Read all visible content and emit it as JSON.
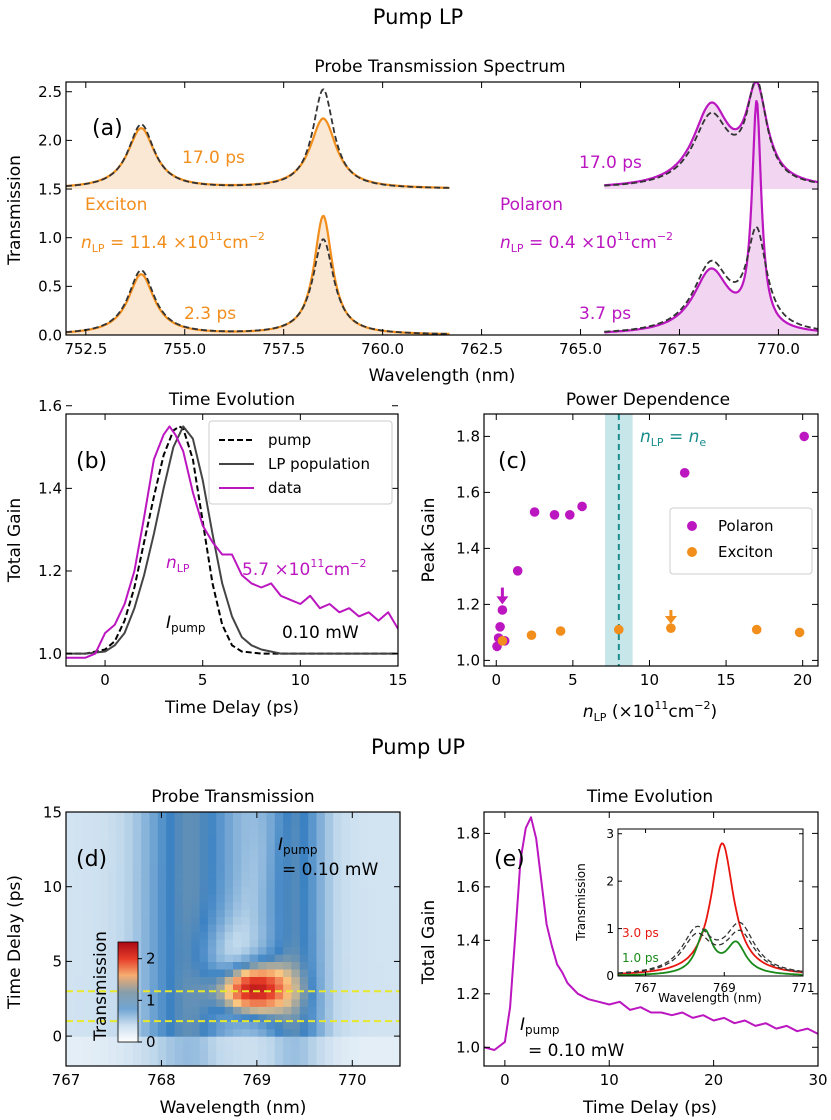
{
  "figure": {
    "section_a_title": "Pump LP",
    "section_b_title": "Pump UP"
  },
  "colors": {
    "orange": "#f28e1c",
    "orange_fill": "#fbe5cf",
    "magenta": "#bb16c0",
    "magenta_fill": "#f0d0f0",
    "dashed": "#333333",
    "teal": "#1a8c8c",
    "teal_band": "#a9d8de",
    "yellow": "#e8e82a",
    "red": "#e8160f",
    "green": "#1a8a1a"
  },
  "chart_data": [
    {
      "id": "a",
      "panel_label": "(a)",
      "type": "line",
      "title": "Probe Transmission Spectrum",
      "xlabel": "Wavelength (nm)",
      "ylabel": "Transmission",
      "xlim": [
        752.0,
        771.0
      ],
      "ylim": [
        0.0,
        2.6
      ],
      "xticks": [
        "752.5",
        "755.0",
        "757.5",
        "760.0",
        "762.5",
        "765.0",
        "767.5",
        "770.0"
      ],
      "xtick_values": [
        752.5,
        755.0,
        757.5,
        760.0,
        762.5,
        765.0,
        767.5,
        770.0
      ],
      "yticks": [
        "0.0",
        "0.5",
        "1.0",
        "1.5",
        "2.0",
        "2.5"
      ],
      "ytick_values": [
        0.0,
        0.5,
        1.0,
        1.5,
        2.0,
        2.5
      ],
      "annotations": {
        "exc_top_time": "17.0 ps",
        "exc_bottom_time": "2.3 ps",
        "exc_name": "Exciton",
        "exc_density_prefix": "n",
        "exc_density_sub": "LP",
        "exc_density_value": " = 11.4 ×10",
        "exc_density_exp": "11",
        "exc_density_unit": "cm",
        "exc_density_unit_exp": "−2",
        "pol_top_time": "17.0 ps",
        "pol_bottom_time": "3.7 ps",
        "pol_name": "Polaron",
        "pol_density_prefix": "n",
        "pol_density_sub": "LP",
        "pol_density_value": " = 0.4 ×10",
        "pol_density_exp": "11",
        "pol_density_unit": "cm",
        "pol_density_unit_exp": "−2"
      },
      "series": [
        {
          "name": "exciton 17.0 ps (data)",
          "x_range": [
            752.0,
            761.7
          ],
          "offset": 1.5,
          "peaks": [
            [
              753.9,
              0.62,
              0.42
            ],
            [
              758.5,
              0.72,
              0.4
            ]
          ]
        },
        {
          "name": "exciton 17.0 ps (reference)",
          "x_range": [
            752.0,
            761.7
          ],
          "offset": 1.5,
          "peaks": [
            [
              753.9,
              0.66,
              0.4
            ],
            [
              758.5,
              1.02,
              0.32
            ]
          ]
        },
        {
          "name": "exciton 2.3 ps (data)",
          "x_range": [
            752.0,
            761.7
          ],
          "offset": 0.0,
          "peaks": [
            [
              753.9,
              0.62,
              0.4
            ],
            [
              758.5,
              1.22,
              0.28
            ]
          ]
        },
        {
          "name": "exciton 2.3 ps (reference)",
          "x_range": [
            752.0,
            761.7
          ],
          "offset": 0.0,
          "peaks": [
            [
              753.9,
              0.66,
              0.4
            ],
            [
              758.5,
              0.98,
              0.32
            ]
          ]
        },
        {
          "name": "polaron 17.0 ps (data)",
          "x_range": [
            765.6,
            771.0
          ],
          "offset": 1.5,
          "peaks": [
            [
              768.3,
              0.82,
              0.55
            ],
            [
              769.45,
              0.95,
              0.32
            ]
          ]
        },
        {
          "name": "polaron 17.0 ps (reference)",
          "x_range": [
            765.6,
            771.0
          ],
          "offset": 1.5,
          "peaks": [
            [
              768.3,
              0.72,
              0.55
            ],
            [
              769.45,
              1.0,
              0.3
            ]
          ]
        },
        {
          "name": "polaron 3.7 ps (data)",
          "x_range": [
            765.6,
            771.0
          ],
          "offset": 0.0,
          "peaks": [
            [
              768.3,
              0.65,
              0.55
            ],
            [
              769.45,
              2.3,
              0.14
            ]
          ]
        },
        {
          "name": "polaron 3.7 ps (reference)",
          "x_range": [
            765.6,
            771.0
          ],
          "offset": 0.0,
          "peaks": [
            [
              768.3,
              0.7,
              0.55
            ],
            [
              769.45,
              0.98,
              0.3
            ]
          ]
        }
      ]
    },
    {
      "id": "b",
      "panel_label": "(b)",
      "type": "line",
      "title": "Time Evolution",
      "xlabel": "Time Delay (ps)",
      "ylabel": "Total Gain",
      "xlim": [
        -2,
        15
      ],
      "ylim": [
        0.97,
        1.58
      ],
      "xticks": [
        "0",
        "5",
        "10",
        "15"
      ],
      "xtick_values": [
        0,
        5,
        10,
        15
      ],
      "yticks": [
        "1.0",
        "1.2",
        "1.4",
        "1.6"
      ],
      "ytick_values": [
        1.0,
        1.2,
        1.4,
        1.6
      ],
      "legend": [
        "pump",
        "LP population",
        "data"
      ],
      "annotations": {
        "density_prefix": "n",
        "density_sub": "LP",
        "density_value": "5.7 ×10",
        "density_exp": "11",
        "density_unit": "cm",
        "density_unit_exp": "−2",
        "pump_prefix": "I",
        "pump_sub": "pump",
        "power": "0.10 mW"
      },
      "series": [
        {
          "name": "pump",
          "x": [
            -2,
            -1,
            0,
            0.5,
            1,
            1.5,
            2,
            2.5,
            3,
            3.5,
            3.8,
            4,
            4.5,
            5,
            5.5,
            6,
            6.5,
            7,
            8,
            10,
            15
          ],
          "y": [
            1.0,
            1.0,
            1.01,
            1.03,
            1.08,
            1.16,
            1.27,
            1.38,
            1.48,
            1.54,
            1.55,
            1.545,
            1.47,
            1.32,
            1.17,
            1.07,
            1.02,
            1.005,
            1.0,
            1.0,
            1.0
          ]
        },
        {
          "name": "LP population",
          "x": [
            -2,
            -1,
            0,
            0.5,
            1,
            1.5,
            2,
            2.5,
            3,
            3.5,
            4,
            4.5,
            5,
            5.5,
            6,
            6.5,
            7,
            7.5,
            8,
            9,
            10,
            15
          ],
          "y": [
            1.0,
            1.0,
            1.005,
            1.02,
            1.05,
            1.11,
            1.19,
            1.29,
            1.4,
            1.5,
            1.55,
            1.52,
            1.42,
            1.29,
            1.17,
            1.09,
            1.04,
            1.02,
            1.01,
            1.0,
            1.0,
            1.0
          ]
        },
        {
          "name": "data",
          "x": [
            -2,
            -1,
            -0.5,
            0,
            0.5,
            1,
            1.5,
            2,
            2.5,
            3,
            3.3,
            3.6,
            4,
            4.5,
            5,
            5.5,
            6,
            6.5,
            7,
            7.5,
            8,
            8.5,
            9,
            9.5,
            10,
            10.5,
            11,
            11.5,
            12,
            12.5,
            13,
            13.5,
            14,
            14.5,
            15
          ],
          "y": [
            0.99,
            0.99,
            1.0,
            1.05,
            1.07,
            1.12,
            1.2,
            1.33,
            1.47,
            1.53,
            1.55,
            1.53,
            1.49,
            1.39,
            1.31,
            1.27,
            1.24,
            1.24,
            1.19,
            1.17,
            1.16,
            1.17,
            1.14,
            1.13,
            1.12,
            1.14,
            1.11,
            1.12,
            1.1,
            1.11,
            1.09,
            1.1,
            1.08,
            1.1,
            1.06
          ]
        }
      ]
    },
    {
      "id": "c",
      "panel_label": "(c)",
      "type": "scatter",
      "title": "Power Dependence",
      "xlabel_prefix": "n",
      "xlabel_sub": "LP",
      "xlabel_rest": " (×10",
      "xlabel_exp": "11",
      "xlabel_unit": "cm",
      "xlabel_unit_exp": "−2",
      "xlabel_close": ")",
      "ylabel": "Peak Gain",
      "xlim": [
        -0.8,
        21
      ],
      "ylim": [
        0.98,
        1.88
      ],
      "xticks": [
        "0",
        "5",
        "10",
        "15",
        "20"
      ],
      "xtick_values": [
        0,
        5,
        10,
        15,
        20
      ],
      "yticks": [
        "1.0",
        "1.2",
        "1.4",
        "1.6",
        "1.8"
      ],
      "ytick_values": [
        1.0,
        1.2,
        1.4,
        1.6,
        1.8
      ],
      "vertical_line": {
        "x": 8.0,
        "band": [
          7.1,
          8.9
        ],
        "label_lhs": "n",
        "label_lhs_sub": "LP",
        "label_eq": " = ",
        "label_rhs": "n",
        "label_rhs_sub": "e"
      },
      "arrows": [
        {
          "x": 0.4,
          "y_from": 1.26,
          "y_to": 1.2,
          "series": "Polaron"
        },
        {
          "x": 11.4,
          "y_from": 1.18,
          "y_to": 1.13,
          "series": "Exciton"
        }
      ],
      "series": [
        {
          "name": "Polaron",
          "x": [
            0.05,
            0.15,
            0.25,
            0.4,
            0.55,
            1.4,
            2.5,
            3.8,
            4.8,
            5.6,
            12.3,
            20.1
          ],
          "y": [
            1.05,
            1.08,
            1.12,
            1.18,
            1.07,
            1.32,
            1.53,
            1.52,
            1.52,
            1.55,
            1.67,
            1.8
          ]
        },
        {
          "name": "Exciton",
          "x": [
            0.4,
            2.3,
            4.2,
            8.0,
            11.4,
            17.0,
            19.8
          ],
          "y": [
            1.07,
            1.09,
            1.105,
            1.11,
            1.115,
            1.11,
            1.1
          ]
        }
      ]
    },
    {
      "id": "d",
      "panel_label": "(d)",
      "type": "heatmap",
      "title": "Probe Transmission",
      "xlabel": "Wavelength (nm)",
      "ylabel": "Time Delay (ps)",
      "xlim": [
        767.0,
        770.5
      ],
      "ylim": [
        -2.0,
        15.0
      ],
      "xticks": [
        "767",
        "768",
        "769",
        "770"
      ],
      "xtick_values": [
        767,
        768,
        769,
        770
      ],
      "yticks": [
        "0",
        "5",
        "10",
        "15"
      ],
      "ytick_values": [
        0,
        5,
        10,
        15
      ],
      "colorbar": {
        "label": "Transmission",
        "ticks": [
          "0",
          "1",
          "2"
        ],
        "tick_values": [
          0,
          1,
          2
        ],
        "range": [
          0,
          2.4
        ]
      },
      "annotations": {
        "pump_prefix": "I",
        "pump_sub": "pump",
        "power": "= 0.10 mW"
      },
      "guide_lines_y": [
        1.0,
        3.0
      ]
    },
    {
      "id": "e",
      "panel_label": "(e)",
      "type": "line",
      "title": "Time Evolution",
      "xlabel": "Time Delay (ps)",
      "ylabel": "Total Gain",
      "xlim": [
        -2,
        30
      ],
      "ylim": [
        0.93,
        1.88
      ],
      "xticks": [
        "0",
        "10",
        "20",
        "30"
      ],
      "xtick_values": [
        0,
        10,
        20,
        30
      ],
      "yticks": [
        "1.0",
        "1.2",
        "1.4",
        "1.6",
        "1.8"
      ],
      "ytick_values": [
        1.0,
        1.2,
        1.4,
        1.6,
        1.8
      ],
      "annotations": {
        "pump_prefix": "I",
        "pump_sub": "pump",
        "power": "= 0.10 mW"
      },
      "series": [
        {
          "name": "data",
          "x": [
            -2,
            -1,
            0,
            0.5,
            1,
            1.5,
            2,
            2.5,
            3,
            3.5,
            4,
            4.5,
            5,
            5.5,
            6,
            6.5,
            7,
            8,
            9,
            10,
            11,
            12,
            13,
            14,
            15,
            16,
            17,
            18,
            19,
            20,
            21,
            22,
            23,
            24,
            25,
            26,
            27,
            28,
            29,
            30
          ],
          "y": [
            1.0,
            0.99,
            1.02,
            1.15,
            1.42,
            1.7,
            1.82,
            1.86,
            1.78,
            1.62,
            1.46,
            1.38,
            1.31,
            1.28,
            1.24,
            1.22,
            1.2,
            1.18,
            1.17,
            1.16,
            1.17,
            1.14,
            1.15,
            1.13,
            1.13,
            1.12,
            1.13,
            1.11,
            1.12,
            1.1,
            1.11,
            1.09,
            1.1,
            1.08,
            1.09,
            1.07,
            1.08,
            1.06,
            1.07,
            1.05
          ]
        }
      ],
      "inset": {
        "type": "line",
        "xlabel": "Wavelength (nm)",
        "ylabel": "Transmission",
        "xlim": [
          766.3,
          771.0
        ],
        "ylim": [
          0,
          3.1
        ],
        "xticks": [
          "767",
          "769",
          "771"
        ],
        "xtick_values": [
          767,
          769,
          771
        ],
        "yticks": [
          "0",
          "1",
          "2",
          "3"
        ],
        "ytick_values": [
          0,
          1,
          2,
          3
        ],
        "labels": [
          "3.0 ps",
          "1.0 ps"
        ],
        "series": [
          {
            "name": "3.0 ps",
            "offset": 0.0,
            "peaks": [
              [
                768.95,
                2.8,
                0.35
              ]
            ]
          },
          {
            "name": "3.0 ps reference",
            "offset": 0.0,
            "peaks": [
              [
                768.3,
                0.9,
                0.45
              ],
              [
                769.4,
                1.0,
                0.45
              ]
            ]
          },
          {
            "name": "1.0 ps",
            "offset": 0.0,
            "peaks": [
              [
                768.5,
                0.9,
                0.25
              ],
              [
                769.3,
                0.65,
                0.3
              ]
            ]
          },
          {
            "name": "1.0 ps reference",
            "offset": 0.0,
            "peaks": [
              [
                768.3,
                0.78,
                0.45
              ],
              [
                769.4,
                0.85,
                0.45
              ]
            ]
          }
        ]
      }
    }
  ]
}
